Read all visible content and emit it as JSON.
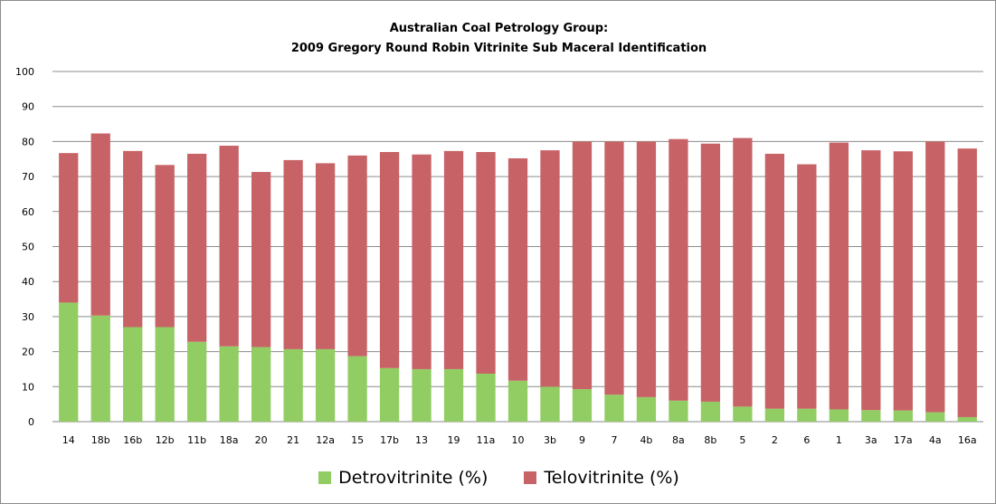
{
  "chart_data": {
    "type": "bar",
    "stacked": true,
    "title_line1": "Australian Coal Petrology Group:",
    "title_line2": "2009 Gregory Round Robin Vitrinite Sub Maceral Identification",
    "xlabel": "",
    "ylabel": "",
    "ylim": [
      0,
      100
    ],
    "yticks": [
      0,
      10,
      20,
      30,
      40,
      50,
      60,
      70,
      80,
      90,
      100
    ],
    "grid": true,
    "legend_position": "bottom",
    "categories": [
      "14",
      "18b",
      "16b",
      "12b",
      "11b",
      "18a",
      "20",
      "21",
      "12a",
      "15",
      "17b",
      "13",
      "19",
      "11a",
      "10",
      "3b",
      "9",
      "7",
      "4b",
      "8a",
      "8b",
      "5",
      "2",
      "6",
      "1",
      "3a",
      "17a",
      "4a",
      "16a"
    ],
    "series": [
      {
        "name": "Detrovitrinite (%)",
        "color": "#92cd63",
        "values": [
          34,
          30.3,
          27,
          27,
          22.8,
          21.5,
          21.3,
          20.7,
          20.7,
          18.7,
          15.3,
          15,
          15,
          13.7,
          11.7,
          10,
          9.3,
          7.7,
          7,
          6,
          5.7,
          4.3,
          3.7,
          3.7,
          3.5,
          3.3,
          3.2,
          2.7,
          1.3
        ]
      },
      {
        "name": "Telovitrinite (%)",
        "color": "#c76366",
        "values": [
          42.7,
          52,
          50.3,
          46.3,
          53.7,
          57.3,
          50,
          54,
          53.1,
          57.3,
          61.7,
          61.3,
          62.3,
          63.3,
          63.5,
          67.5,
          70.7,
          72.3,
          73,
          74.7,
          73.7,
          76.7,
          72.8,
          69.8,
          76.2,
          74.2,
          74,
          77.3,
          76.7
        ]
      }
    ]
  }
}
